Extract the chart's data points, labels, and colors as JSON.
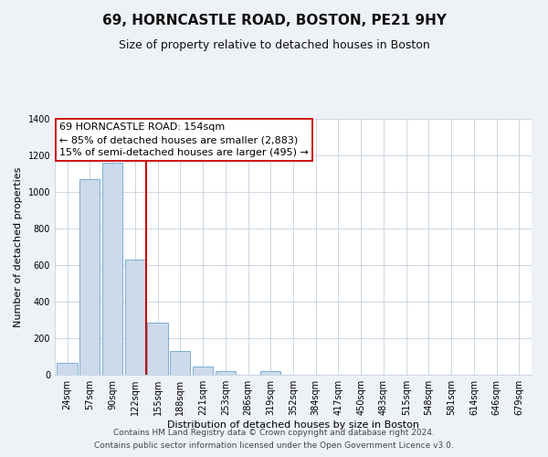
{
  "title": "69, HORNCASTLE ROAD, BOSTON, PE21 9HY",
  "subtitle": "Size of property relative to detached houses in Boston",
  "xlabel": "Distribution of detached houses by size in Boston",
  "ylabel": "Number of detached properties",
  "footnote1": "Contains HM Land Registry data © Crown copyright and database right 2024.",
  "footnote2": "Contains public sector information licensed under the Open Government Licence v3.0.",
  "bar_labels": [
    "24sqm",
    "57sqm",
    "90sqm",
    "122sqm",
    "155sqm",
    "188sqm",
    "221sqm",
    "253sqm",
    "286sqm",
    "319sqm",
    "352sqm",
    "384sqm",
    "417sqm",
    "450sqm",
    "483sqm",
    "515sqm",
    "548sqm",
    "581sqm",
    "614sqm",
    "646sqm",
    "679sqm"
  ],
  "bar_values": [
    65,
    1070,
    1160,
    630,
    285,
    130,
    45,
    20,
    0,
    20,
    0,
    0,
    0,
    0,
    0,
    0,
    0,
    0,
    0,
    0,
    0
  ],
  "bar_color": "#cddaeb",
  "bar_edge_color": "#7aaed4",
  "vline_color": "#cc0000",
  "vline_index": 3.5,
  "annotation_line1": "69 HORNCASTLE ROAD: 154sqm",
  "annotation_line2": "← 85% of detached houses are smaller (2,883)",
  "annotation_line3": "15% of semi-detached houses are larger (495) →",
  "ylim": [
    0,
    1400
  ],
  "yticks": [
    0,
    200,
    400,
    600,
    800,
    1000,
    1200,
    1400
  ],
  "bg_color": "#eef2f7",
  "plot_bg_color": "#ffffff",
  "grid_color": "#c5d0de",
  "title_fontsize": 11,
  "subtitle_fontsize": 9,
  "axis_label_fontsize": 8,
  "tick_fontsize": 7,
  "annotation_fontsize": 8,
  "footnote_fontsize": 6.5
}
